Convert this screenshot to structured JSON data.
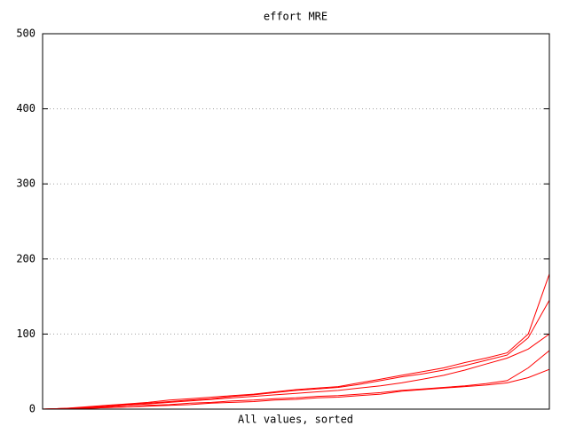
{
  "chart_data": {
    "type": "line",
    "title": "effort MRE",
    "x_label": "All values, sorted",
    "x": [
      1,
      2,
      3,
      4,
      5,
      6,
      7,
      8,
      9,
      10,
      11,
      12,
      13,
      14,
      15,
      16,
      17,
      18,
      19,
      20,
      21,
      22,
      23,
      24,
      25
    ],
    "xlim": [
      1,
      25
    ],
    "ylim": [
      0,
      500
    ],
    "yticks": [
      0,
      100,
      200,
      300,
      400,
      500
    ],
    "grid": true,
    "series": [
      {
        "color": "#ff0000",
        "values": [
          0,
          1,
          3,
          5,
          7,
          9,
          12,
          14,
          16,
          18,
          20,
          23,
          26,
          28,
          30,
          35,
          40,
          45,
          50,
          55,
          62,
          68,
          75,
          100,
          180
        ]
      },
      {
        "color": "#ff0000",
        "values": [
          0,
          1,
          2,
          4,
          6,
          8,
          10,
          12,
          14,
          17,
          19,
          22,
          25,
          27,
          29,
          33,
          38,
          43,
          47,
          52,
          58,
          65,
          72,
          95,
          145
        ]
      },
      {
        "color": "#ff0000",
        "values": [
          0,
          1,
          2,
          3,
          5,
          7,
          9,
          11,
          13,
          15,
          17,
          19,
          21,
          23,
          25,
          28,
          31,
          35,
          40,
          45,
          52,
          60,
          68,
          80,
          100
        ]
      },
      {
        "color": "#ff0000",
        "values": [
          0,
          1,
          1,
          2,
          3,
          5,
          6,
          8,
          9,
          11,
          12,
          14,
          15,
          17,
          18,
          20,
          22,
          25,
          27,
          29,
          31,
          34,
          38,
          55,
          78
        ]
      },
      {
        "color": "#ff0000",
        "values": [
          0,
          0,
          1,
          2,
          3,
          4,
          5,
          6,
          8,
          9,
          10,
          12,
          13,
          15,
          16,
          18,
          20,
          24,
          26,
          28,
          30,
          32,
          35,
          42,
          53
        ]
      }
    ]
  }
}
